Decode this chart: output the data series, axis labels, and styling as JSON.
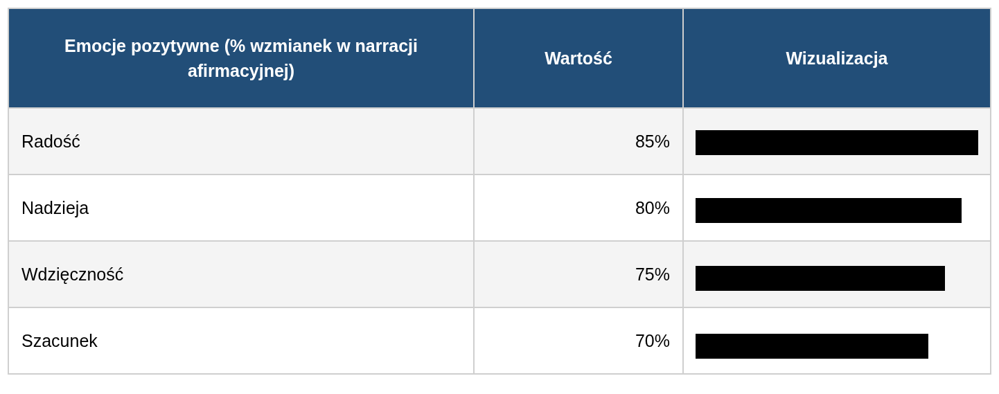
{
  "chart_data": {
    "type": "bar",
    "orientation": "horizontal",
    "ylabel": "Emocje pozytywne (% wzmianek w narracji afirmacyjnej)",
    "annotations": [
      "Wartość",
      "Wizualizacja"
    ],
    "categories": [
      "Radość",
      "Nadzieja",
      "Wdzięczność",
      "Szacunek"
    ],
    "values": [
      85,
      80,
      75,
      70
    ],
    "color": "#000000",
    "value_labels": [
      "85%",
      "80%",
      "75%",
      "70%"
    ]
  }
}
